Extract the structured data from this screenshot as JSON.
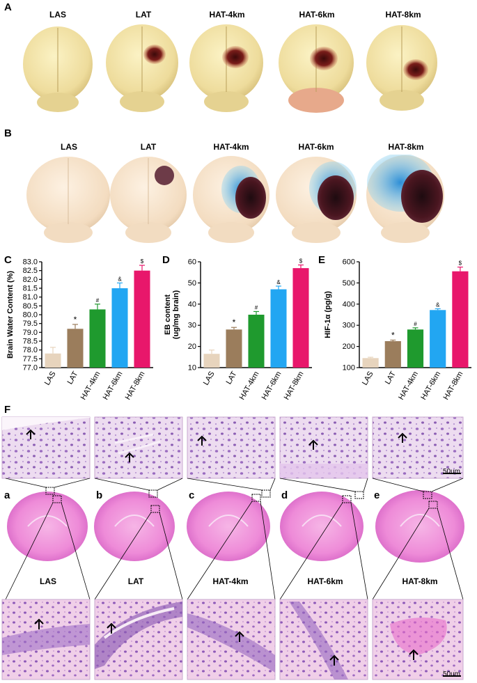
{
  "panels": {
    "A": {
      "letter": "A",
      "labels": [
        "LAS",
        "LAT",
        "HAT-4km",
        "HAT-6km",
        "HAT-8km"
      ]
    },
    "B": {
      "letter": "B",
      "labels": [
        "LAS",
        "LAT",
        "HAT-4km",
        "HAT-6km",
        "HAT-8km"
      ]
    },
    "F": {
      "letter": "F",
      "sub_letters": [
        "a",
        "b",
        "c",
        "d",
        "e"
      ],
      "group_labels": [
        "LAS",
        "LAT",
        "HAT-4km",
        "HAT-6km",
        "HAT-8km"
      ],
      "scale_top": "50um",
      "scale_bottom": "50um"
    }
  },
  "chart_data": [
    {
      "panel": "C",
      "type": "bar",
      "categories": [
        "LAS",
        "LAT",
        "HAT-4km",
        "HAT-6km",
        "HAT-8km"
      ],
      "values": [
        77.8,
        79.2,
        80.3,
        81.5,
        82.5
      ],
      "errors": [
        0.35,
        0.25,
        0.3,
        0.3,
        0.3
      ],
      "markers": [
        "",
        "*",
        "#",
        "&",
        "$"
      ],
      "colors": [
        "#e7d4bd",
        "#9b7d5c",
        "#1f9a2e",
        "#22a6f2",
        "#e8176b"
      ],
      "ylabel": "Brain Water Content (%)",
      "ylim": [
        77.0,
        83.0
      ],
      "yticks": [
        "77.0",
        "77.5",
        "78.0",
        "78.5",
        "79.0",
        "79.5",
        "80.0",
        "80.5",
        "81.0",
        "81.5",
        "82.0",
        "82.5",
        "83.0"
      ]
    },
    {
      "panel": "D",
      "type": "bar",
      "categories": [
        "LAS",
        "LAT",
        "HAT-4km",
        "HAT-6km",
        "HAT-8km"
      ],
      "values": [
        16.5,
        28,
        35,
        47,
        57
      ],
      "errors": [
        1.8,
        1.0,
        1.5,
        1.5,
        1.5
      ],
      "markers": [
        "",
        "*",
        "#",
        "&",
        "$"
      ],
      "colors": [
        "#e7d4bd",
        "#9b7d5c",
        "#1f9a2e",
        "#22a6f2",
        "#e8176b"
      ],
      "ylabel": "EB content\n(ug/mg brain)",
      "ylim": [
        10,
        60
      ],
      "yticks": [
        "10",
        "20",
        "30",
        "40",
        "50",
        "60"
      ]
    },
    {
      "panel": "E",
      "type": "bar",
      "categories": [
        "LAS",
        "LAT",
        "HAT-4km",
        "HAT-6km",
        "HAT-8km"
      ],
      "values": [
        145,
        225,
        280,
        372,
        555
      ],
      "errors": [
        4,
        5,
        8,
        6,
        20
      ],
      "markers": [
        "",
        "*",
        "#",
        "&",
        "$"
      ],
      "colors": [
        "#e7d4bd",
        "#9b7d5c",
        "#1f9a2e",
        "#22a6f2",
        "#e8176b"
      ],
      "ylabel": "HIF-1α (pg/g)",
      "ylim": [
        100,
        600
      ],
      "yticks": [
        "100",
        "200",
        "300",
        "400",
        "500",
        "600"
      ]
    }
  ]
}
